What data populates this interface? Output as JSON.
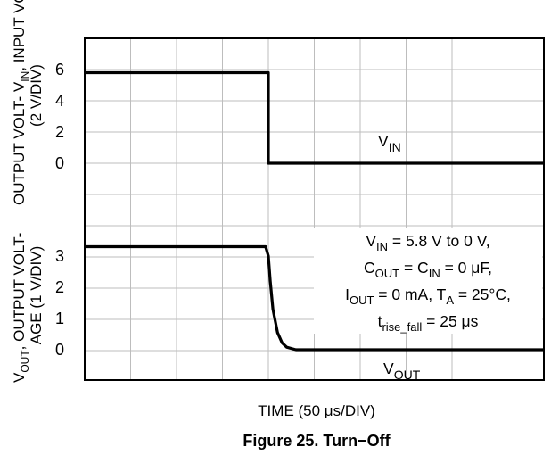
{
  "chart_data": {
    "type": "line",
    "caption": "Figure 25. Turn−Off",
    "xlabel": {
      "text": "TIME (50 ",
      "unit_mu": "μ",
      "unit_rest": "s/DIV)"
    },
    "x_divisions": 10,
    "x_unit": "μs",
    "x_range": [
      0,
      500
    ],
    "grid": true,
    "upper_ylabel": {
      "pre": "INPUT VOLTAGE",
      "line2": "(2 V/DIV)",
      "mid": "OUTPUT VOLT- V",
      "sub": "IN",
      "post": ","
    },
    "lower_ylabel": {
      "pre": "V",
      "sub": "OUT",
      "post": ", OUTPUT VOLT-",
      "line2": "AGE (1 V/DIV)"
    },
    "upper_ticks": [
      "6",
      "4",
      "2",
      "0"
    ],
    "lower_ticks": [
      "3",
      "2",
      "1",
      "0"
    ],
    "series": [
      {
        "name": "VIN",
        "label_main": "V",
        "label_sub": "IN",
        "scale_v_per_div": 2,
        "x": [
          0,
          200,
          200,
          500
        ],
        "y": [
          5.8,
          5.8,
          0,
          0
        ]
      },
      {
        "name": "VOUT",
        "label_main": "V",
        "label_sub": "OUT",
        "scale_v_per_div": 1,
        "x": [
          0,
          197,
          200,
          202,
          205,
          210,
          215,
          220,
          230,
          500
        ],
        "y": [
          3.3,
          3.3,
          3.0,
          2.2,
          1.3,
          0.55,
          0.22,
          0.08,
          0.0,
          0.0
        ]
      }
    ],
    "annotation": [
      {
        "t": [
          [
            "V",
            ""
          ],
          [
            "IN",
            "sub"
          ],
          [
            " = 5.8 V to 0 V,",
            ""
          ]
        ]
      },
      {
        "t": [
          [
            "C",
            ""
          ],
          [
            "OUT",
            "sub"
          ],
          [
            " = C",
            ""
          ],
          [
            "IN",
            "sub"
          ],
          [
            " = 0 ",
            ""
          ],
          [
            "μ",
            ""
          ],
          [
            "F,",
            ""
          ]
        ]
      },
      {
        "t": [
          [
            "I",
            ""
          ],
          [
            "OUT",
            "sub"
          ],
          [
            " = 0 mA, T",
            ""
          ],
          [
            "A",
            "sub"
          ],
          [
            " = 25°C,",
            ""
          ]
        ]
      },
      {
        "t": [
          [
            "t",
            ""
          ],
          [
            "rise_fall",
            "sub"
          ],
          [
            " = 25 ",
            ""
          ],
          [
            "μ",
            ""
          ],
          [
            "s",
            ""
          ]
        ]
      }
    ]
  }
}
